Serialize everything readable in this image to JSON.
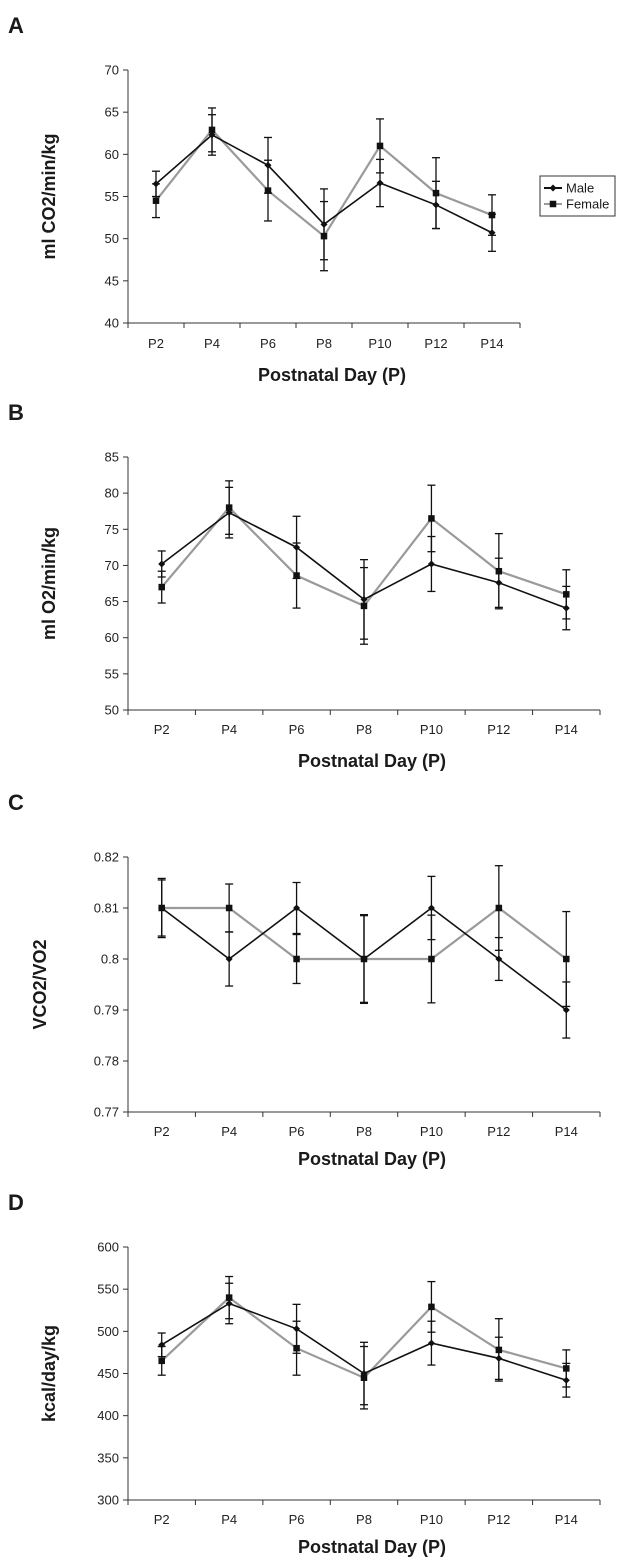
{
  "chart_data": [
    {
      "panel": "A",
      "type": "line",
      "xlabel": "Postnatal Day (P)",
      "ylabel": "ml CO2/min/kg",
      "ylim": [
        40,
        70
      ],
      "yticks": [
        "40",
        "45",
        "50",
        "55",
        "60",
        "65",
        "70"
      ],
      "categories": [
        "P2",
        "P4",
        "P6",
        "P8",
        "P10",
        "P12",
        "P14"
      ],
      "legend": "right",
      "series": [
        {
          "name": "Male",
          "color": "#111111",
          "marker": "diamond",
          "values": [
            56.5,
            62.3,
            58.7,
            51.7,
            56.6,
            54.0,
            50.7
          ],
          "errors": [
            1.5,
            2.4,
            3.3,
            4.2,
            2.8,
            2.8,
            2.2
          ]
        },
        {
          "name": "Female",
          "color": "#9a9a9a",
          "marker": "square",
          "values": [
            54.5,
            62.9,
            55.7,
            50.3,
            61.0,
            55.4,
            52.8
          ],
          "errors": [
            2.0,
            2.6,
            3.6,
            4.1,
            3.2,
            4.2,
            2.4
          ]
        }
      ]
    },
    {
      "panel": "B",
      "type": "line",
      "xlabel": "Postnatal Day (P)",
      "ylabel": "ml O2/min/kg",
      "ylim": [
        50,
        85
      ],
      "yticks": [
        "50",
        "55",
        "60",
        "65",
        "70",
        "75",
        "80",
        "85"
      ],
      "categories": [
        "P2",
        "P4",
        "P6",
        "P8",
        "P10",
        "P12",
        "P14"
      ],
      "series": [
        {
          "name": "Male",
          "color": "#111111",
          "marker": "diamond",
          "values": [
            70.2,
            77.3,
            72.5,
            65.3,
            70.2,
            67.6,
            64.1
          ],
          "errors": [
            1.8,
            3.5,
            4.3,
            5.5,
            3.8,
            3.4,
            3.0
          ]
        },
        {
          "name": "Female",
          "color": "#9a9a9a",
          "marker": "square",
          "values": [
            67.0,
            78.0,
            68.6,
            64.4,
            76.5,
            69.2,
            66.0
          ],
          "errors": [
            2.2,
            3.7,
            4.5,
            5.3,
            4.6,
            5.2,
            3.4
          ]
        }
      ]
    },
    {
      "panel": "C",
      "type": "line",
      "xlabel": "Postnatal Day (P)",
      "ylabel": "VCO2/VO2",
      "ylim": [
        0.77,
        0.82
      ],
      "yticks": [
        "0.77",
        "0.78",
        "0.79",
        "0.8",
        "0.81",
        "0.82"
      ],
      "categories": [
        "P2",
        "P4",
        "P6",
        "P8",
        "P10",
        "P12",
        "P14"
      ],
      "series": [
        {
          "name": "Male",
          "color": "#111111",
          "marker": "diamond",
          "values": [
            0.81,
            0.8,
            0.81,
            0.8,
            0.81,
            0.8,
            0.79
          ],
          "errors": [
            0.0055,
            0.0053,
            0.005,
            0.0085,
            0.0062,
            0.0042,
            0.0055
          ]
        },
        {
          "name": "Female",
          "color": "#9a9a9a",
          "marker": "square",
          "values": [
            0.81,
            0.81,
            0.8,
            0.8,
            0.8,
            0.81,
            0.8
          ],
          "errors": [
            0.0058,
            0.0047,
            0.0048,
            0.0087,
            0.0086,
            0.0083,
            0.0093
          ]
        }
      ]
    },
    {
      "panel": "D",
      "type": "line",
      "xlabel": "Postnatal Day (P)",
      "ylabel": "kcal/day/kg",
      "ylim": [
        300,
        600
      ],
      "yticks": [
        "300",
        "350",
        "400",
        "450",
        "500",
        "550",
        "600"
      ],
      "categories": [
        "P2",
        "P4",
        "P6",
        "P8",
        "P10",
        "P12",
        "P14"
      ],
      "series": [
        {
          "name": "Male",
          "color": "#111111",
          "marker": "diamond",
          "values": [
            484,
            533,
            503,
            450,
            486,
            468,
            442
          ],
          "errors": [
            14,
            24,
            29,
            37,
            26,
            25,
            20
          ]
        },
        {
          "name": "Female",
          "color": "#9a9a9a",
          "marker": "square",
          "values": [
            465,
            540,
            480,
            445,
            529,
            478,
            456
          ],
          "errors": [
            17,
            25,
            32,
            37,
            30,
            37,
            22
          ]
        }
      ]
    }
  ]
}
